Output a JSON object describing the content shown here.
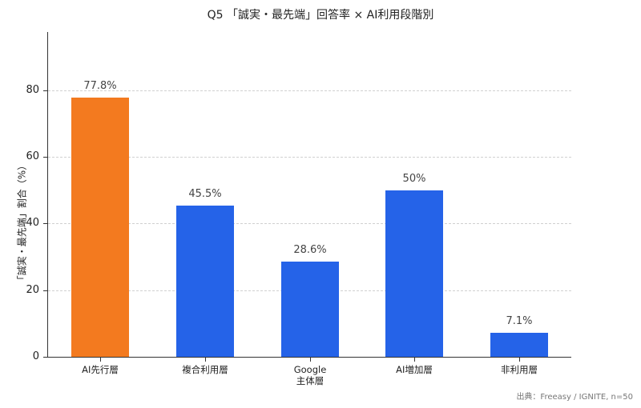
{
  "title": "Q5 「誠実・最先端」回答率 × AI利用段階別",
  "source": "出典：Freeasy / IGNITE, n=50",
  "colors": {
    "highlight": "#f37a1f",
    "default": "#2563e8"
  },
  "chart_data": {
    "type": "bar",
    "title": "Q5 「誠実・最先端」回答率 × AI利用段階別",
    "xlabel": "",
    "ylabel": "「誠実・最先端」割合（%）",
    "categories": [
      "AI先行層",
      "複合利用層",
      "Google\n主体層",
      "AI増加層",
      "非利用層"
    ],
    "values": [
      77.8,
      45.5,
      28.6,
      50.0,
      7.1
    ],
    "value_labels": [
      "77.8%",
      "45.5%",
      "28.6%",
      "50%",
      "7.1%"
    ],
    "bar_colors": [
      "#f37a1f",
      "#2563e8",
      "#2563e8",
      "#2563e8",
      "#2563e8"
    ],
    "ylim": [
      0,
      97.5
    ],
    "yticks": [
      0,
      20,
      40,
      60,
      80
    ],
    "ytick_labels": [
      "0",
      "20",
      "40",
      "60",
      "80"
    ],
    "grid": "horizontal dashed",
    "legend": "none",
    "source_note": "出典：Freeasy / IGNITE, n=50"
  }
}
